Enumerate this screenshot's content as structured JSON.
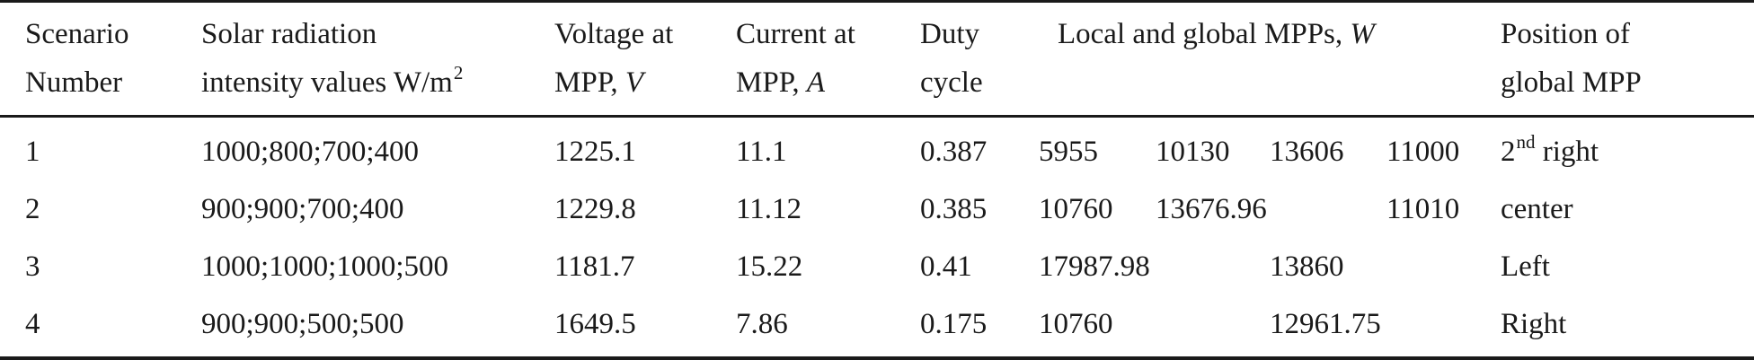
{
  "table": {
    "headers": {
      "scenario": [
        "Scenario",
        "Number"
      ],
      "solar": [
        "Solar radiation",
        "intensity values W/m",
        "2"
      ],
      "voltage": [
        "Voltage at",
        "MPP, ",
        "V"
      ],
      "current": [
        "Current at",
        "MPP, ",
        "A"
      ],
      "duty": [
        "Duty",
        "cycle"
      ],
      "mpps": [
        "Local and global MPPs, ",
        "W"
      ],
      "position": [
        "Position of",
        "global MPP"
      ]
    },
    "rows": [
      {
        "scenario": "1",
        "solar": "1000;800;700;400",
        "voltage": "1225.1",
        "current": "11.1",
        "duty": "0.387",
        "mpps": [
          "5955",
          "10130",
          "13606",
          "11000"
        ],
        "position": "right",
        "position_sup": "nd",
        "position_prefix": "2"
      },
      {
        "scenario": "2",
        "solar": "900;900;700;400",
        "voltage": "1229.8",
        "current": "11.12",
        "duty": "0.385",
        "mpps": [
          "10760",
          "13676.96",
          "11010"
        ],
        "position": "center"
      },
      {
        "scenario": "3",
        "solar": "1000;1000;1000;500",
        "voltage": "1181.7",
        "current": "15.22",
        "duty": "0.41",
        "mpps": [
          "17987.98",
          "13860"
        ],
        "position": "Left"
      },
      {
        "scenario": "4",
        "solar": "900;900;500;500",
        "voltage": "1649.5",
        "current": "7.86",
        "duty": "0.175",
        "mpps": [
          "10760",
          "12961.75"
        ],
        "position": "Right"
      }
    ]
  }
}
